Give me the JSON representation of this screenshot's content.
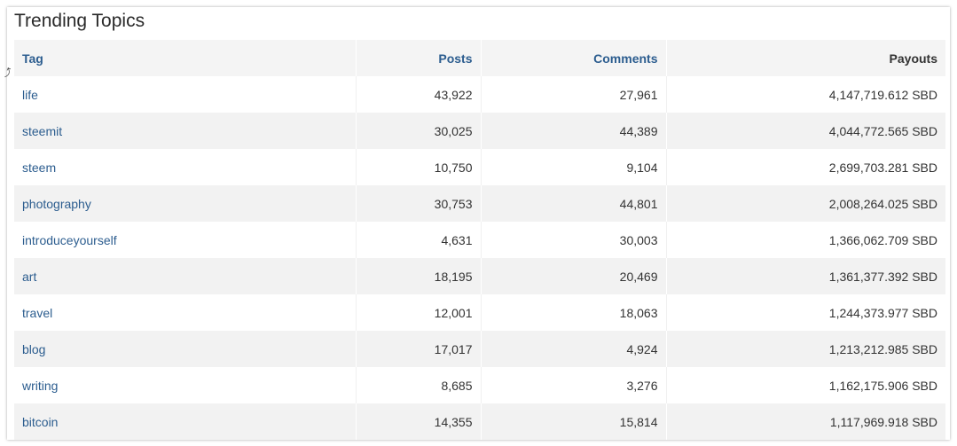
{
  "panel": {
    "title": "Trending Topics"
  },
  "table": {
    "headers": {
      "tag": "Tag",
      "posts": "Posts",
      "comments": "Comments",
      "payouts": "Payouts"
    },
    "rows": [
      {
        "tag": "life",
        "posts": "43,922",
        "comments": "27,961",
        "payouts": "4,147,719.612 SBD"
      },
      {
        "tag": "steemit",
        "posts": "30,025",
        "comments": "44,389",
        "payouts": "4,044,772.565 SBD"
      },
      {
        "tag": "steem",
        "posts": "10,750",
        "comments": "9,104",
        "payouts": "2,699,703.281 SBD"
      },
      {
        "tag": "photography",
        "posts": "30,753",
        "comments": "44,801",
        "payouts": "2,008,264.025 SBD"
      },
      {
        "tag": "introduceyourself",
        "posts": "4,631",
        "comments": "30,003",
        "payouts": "1,366,062.709 SBD"
      },
      {
        "tag": "art",
        "posts": "18,195",
        "comments": "20,469",
        "payouts": "1,361,377.392 SBD"
      },
      {
        "tag": "travel",
        "posts": "12,001",
        "comments": "18,063",
        "payouts": "1,244,373.977 SBD"
      },
      {
        "tag": "blog",
        "posts": "17,017",
        "comments": "4,924",
        "payouts": "1,213,212.985 SBD"
      },
      {
        "tag": "writing",
        "posts": "8,685",
        "comments": "3,276",
        "payouts": "1,162,175.906 SBD"
      },
      {
        "tag": "bitcoin",
        "posts": "14,355",
        "comments": "15,814",
        "payouts": "1,117,969.918 SBD"
      }
    ]
  },
  "colors": {
    "link": "#2c5d8f",
    "text": "#333333",
    "stripe": "#f2f2f2"
  },
  "icons": {
    "cursor": "mouse-cursor-icon"
  }
}
